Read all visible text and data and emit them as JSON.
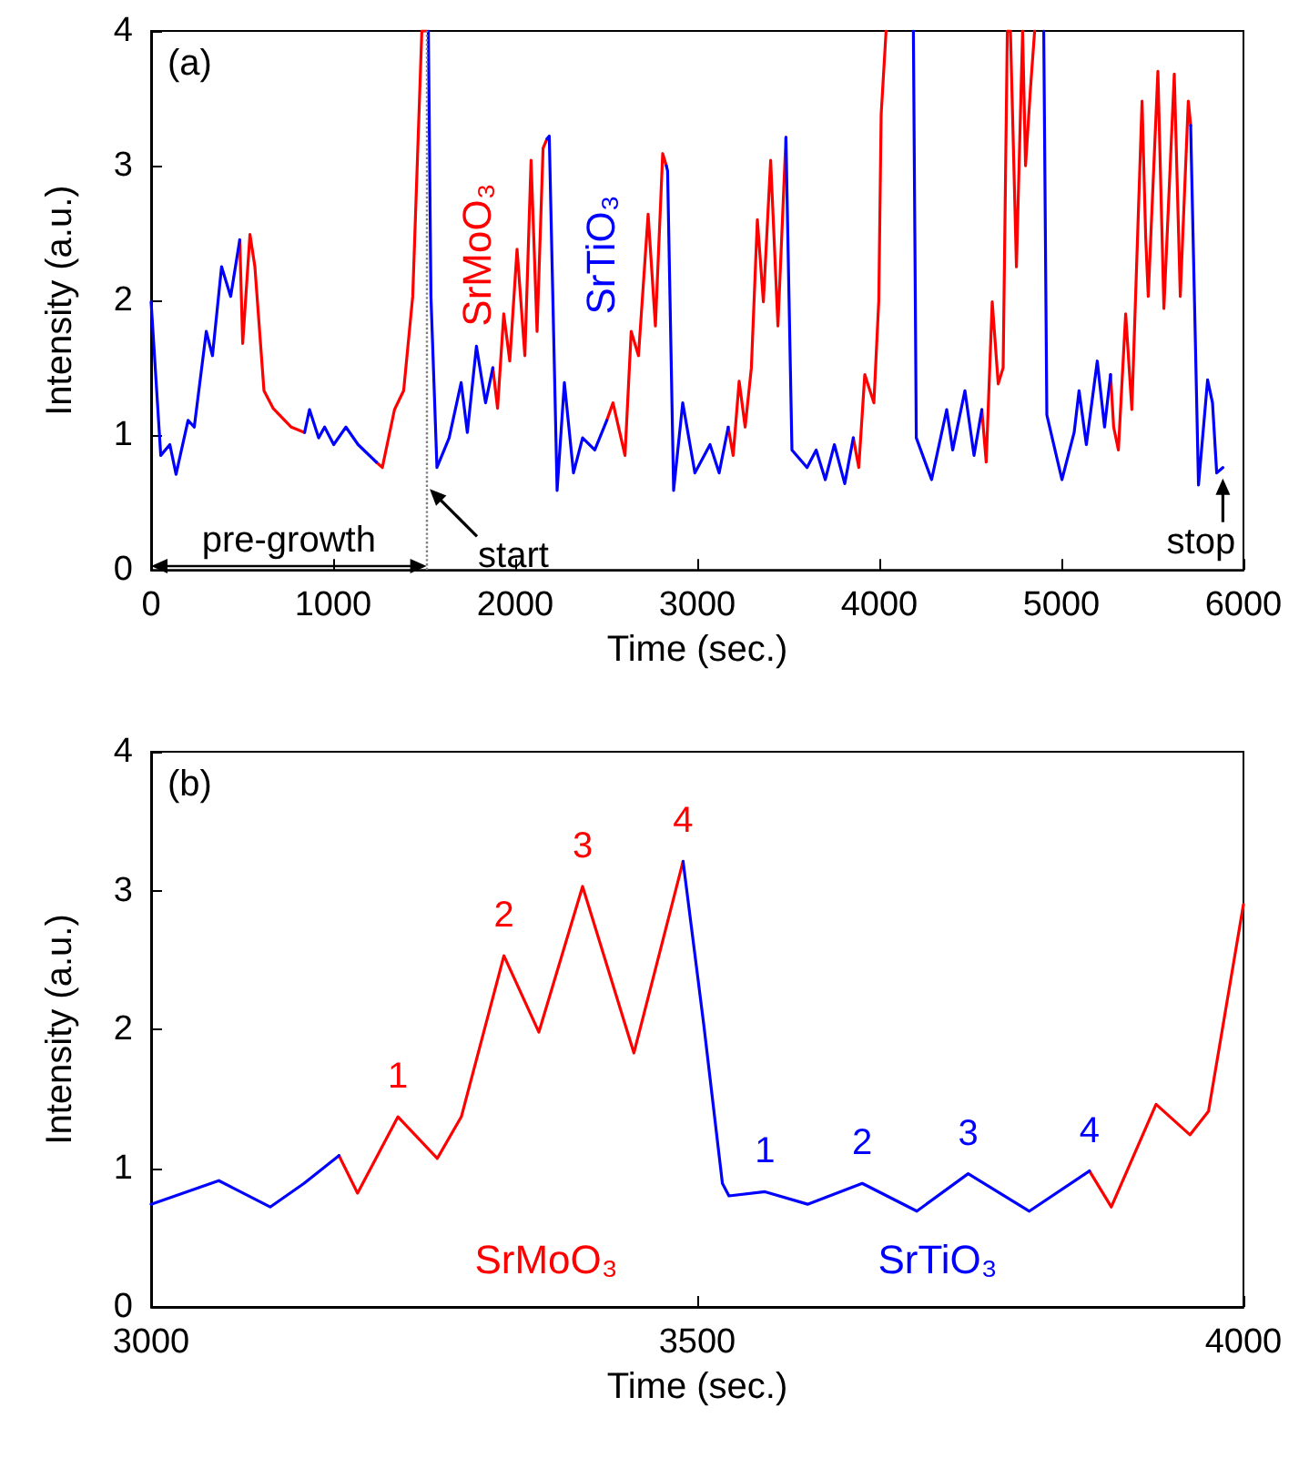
{
  "chart_data": [
    {
      "type": "line",
      "xlabel": "Time (sec.)",
      "ylabel": "Intensity (a.u.)",
      "xlim": [
        0,
        6000
      ],
      "ylim": [
        0,
        4
      ],
      "xticks": [
        0,
        1000,
        2000,
        3000,
        4000,
        5000,
        6000
      ],
      "yticks": [
        0,
        1,
        2,
        3,
        4
      ],
      "grid": false,
      "line_style": "solid",
      "ref_lines": [
        {
          "axis": "x",
          "value": 1513,
          "color": "#808080",
          "line_style": "dotted"
        }
      ],
      "annotations": [
        "(a)",
        "pre-growth",
        {
          "text": "start",
          "x": 1530,
          "y": 0.6
        },
        {
          "text": "stop",
          "x": 5887,
          "y": 0.76
        }
      ],
      "series": [
        {
          "name": "SrMoO₃",
          "color": "#ff0000",
          "x": [
            487,
            503,
            543,
            570,
            620,
            670,
            770,
            843,
            null,
            1237,
            1270,
            1337,
            1387,
            1437,
            1487,
            1513,
            null,
            1877,
            1903,
            1937,
            1970,
            2010,
            2053,
            2087,
            2120,
            2153,
            2175,
            null,
            2503,
            2537,
            2603,
            2637,
            2677,
            2730,
            2770,
            2810,
            2830,
            null,
            3170,
            3197,
            3230,
            3263,
            3297,
            3330,
            3363,
            3403,
            3443,
            3487,
            null,
            3857,
            3887,
            3920,
            3970,
            3997,
            4010,
            4037,
            null,
            4563,
            4587,
            4620,
            4653,
            4680,
            4703,
            4720,
            4753,
            4787,
            4803,
            4830,
            4853,
            null,
            5270,
            5287,
            5313,
            5353,
            5387,
            5443,
            5463,
            5477,
            5530,
            5563,
            5620,
            5653,
            5697,
            5710
          ],
          "values": [
            2.45,
            1.68,
            2.49,
            2.25,
            1.33,
            1.2,
            1.06,
            1.02,
            null,
            0.8,
            0.76,
            1.19,
            1.33,
            2.03,
            4,
            4,
            null,
            1.5,
            1.2,
            1.9,
            1.55,
            2.38,
            1.59,
            3.04,
            1.77,
            3.13,
            3.2,
            null,
            1.11,
            1.24,
            0.85,
            1.77,
            1.59,
            2.64,
            1.81,
            3.09,
            3.0,
            null,
            1.06,
            0.85,
            1.4,
            1.06,
            1.5,
            2.6,
            1.99,
            3.04,
            1.81,
            3.21,
            null,
            0.98,
            0.76,
            1.45,
            1.24,
            2.0,
            3.38,
            4,
            null,
            1.19,
            0.8,
            1.99,
            1.38,
            1.5,
            4,
            4,
            2.25,
            4,
            3.0,
            3.57,
            4,
            null,
            1.45,
            1.06,
            0.89,
            1.9,
            1.19,
            3.48,
            2.47,
            2.03,
            3.7,
            1.94,
            3.68,
            2.03,
            3.48,
            3.3
          ]
        },
        {
          "name": "SrTiO₃",
          "color": "#0000ff",
          "x": [
            0,
            53,
            103,
            137,
            203,
            237,
            303,
            337,
            387,
            437,
            487,
            null,
            843,
            870,
            920,
            953,
            1003,
            1070,
            1137,
            1237,
            null,
            1523,
            1537,
            1570,
            1637,
            1703,
            1737,
            1787,
            1837,
            1877,
            null,
            2175,
            2187,
            2230,
            2270,
            2320,
            2370,
            2437,
            2503,
            null,
            2830,
            2837,
            2870,
            2920,
            2987,
            3070,
            3120,
            3170,
            null,
            3487,
            3520,
            3603,
            3653,
            3703,
            3753,
            3810,
            3857,
            null,
            4187,
            4203,
            4287,
            4370,
            4403,
            4470,
            4520,
            4563,
            null,
            4903,
            4920,
            5003,
            5070,
            5097,
            5137,
            5197,
            5237,
            5270,
            null,
            5710,
            5753,
            5803,
            5830,
            5853,
            5887
          ],
          "values": [
            1.99,
            0.85,
            0.93,
            0.71,
            1.11,
            1.06,
            1.77,
            1.59,
            2.25,
            2.03,
            2.45,
            null,
            1.02,
            1.19,
            0.98,
            1.06,
            0.93,
            1.06,
            0.93,
            0.8,
            null,
            4,
            2.03,
            0.76,
            0.98,
            1.39,
            1.02,
            1.66,
            1.24,
            1.5,
            null,
            3.2,
            3.22,
            0.59,
            1.39,
            0.72,
            0.98,
            0.89,
            1.11,
            null,
            3.0,
            2.96,
            0.59,
            1.24,
            0.72,
            0.93,
            0.72,
            1.06,
            null,
            3.21,
            0.89,
            0.76,
            0.89,
            0.67,
            0.93,
            0.64,
            0.98,
            null,
            4,
            0.98,
            0.67,
            1.19,
            0.89,
            1.33,
            0.85,
            1.19,
            null,
            4,
            1.15,
            0.67,
            1.02,
            1.33,
            0.93,
            1.55,
            1.06,
            1.45,
            null,
            3.3,
            0.63,
            1.41,
            1.24,
            0.72,
            0.76
          ]
        }
      ]
    },
    {
      "type": "line",
      "xlabel": "Time (sec.)",
      "ylabel": "Intensity (a.u.)",
      "xlim": [
        3000,
        4000
      ],
      "ylim": [
        0,
        4
      ],
      "xticks": [
        3000,
        3500,
        4000
      ],
      "yticks": [
        0,
        1,
        2,
        3,
        4
      ],
      "grid": false,
      "line_style": "solid",
      "annotations": [
        "(b)",
        {
          "text": "1",
          "x": 3226,
          "y": 1.37
        },
        {
          "text": "2",
          "x": 3323,
          "y": 2.53
        },
        {
          "text": "3",
          "x": 3395,
          "y": 3.03
        },
        {
          "text": "4",
          "x": 3487,
          "y": 3.21
        },
        {
          "text": "1",
          "x": 3562,
          "y": 0.83
        },
        {
          "text": "2",
          "x": 3651,
          "y": 0.89
        },
        {
          "text": "3",
          "x": 3748,
          "y": 0.96
        },
        {
          "text": "4",
          "x": 3859,
          "y": 0.98
        }
      ],
      "series": [
        {
          "name": "SrMoO₃",
          "color": "#ff0000",
          "x": [
            3172,
            3189,
            3226,
            3262,
            3284,
            3323,
            3355,
            3395,
            3442,
            3487,
            null,
            3859,
            3879,
            3920,
            3951,
            3968,
            4000
          ],
          "values": [
            1.09,
            0.82,
            1.37,
            1.07,
            1.37,
            2.53,
            1.98,
            3.03,
            1.83,
            3.21,
            null,
            0.98,
            0.72,
            1.46,
            1.24,
            1.41,
            2.9
          ]
        },
        {
          "name": "SrTiO₃",
          "color": "#0000ff",
          "x": [
            3000,
            3062,
            3109,
            3140,
            3172,
            null,
            3487,
            3506,
            3523,
            3529,
            3562,
            3601,
            3651,
            3701,
            3748,
            3804,
            3859
          ],
          "values": [
            0.74,
            0.91,
            0.72,
            0.89,
            1.09,
            null,
            3.21,
            2.03,
            0.89,
            0.8,
            0.83,
            0.74,
            0.89,
            0.69,
            0.96,
            0.69,
            0.98
          ]
        }
      ]
    }
  ]
}
